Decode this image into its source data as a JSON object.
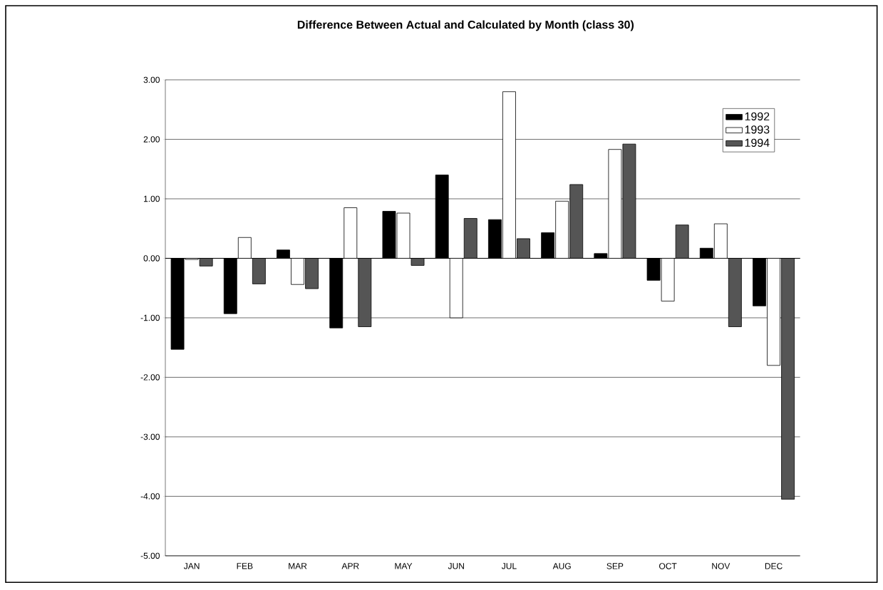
{
  "chart_data": {
    "type": "bar",
    "title": "Difference Between Actual and Calculated by Month (class 30)",
    "categories": [
      "JAN",
      "FEB",
      "MAR",
      "APR",
      "MAY",
      "JUN",
      "JUL",
      "AUG",
      "SEP",
      "OCT",
      "NOV",
      "DEC"
    ],
    "series": [
      {
        "name": "1992",
        "color": "#000000",
        "values": [
          -1.53,
          -0.93,
          0.14,
          -1.17,
          0.79,
          1.4,
          0.65,
          0.43,
          0.08,
          -0.37,
          0.17,
          -0.8
        ]
      },
      {
        "name": "1993",
        "color": "#ffffff",
        "values": [
          -0.02,
          0.35,
          -0.44,
          0.85,
          0.76,
          -1.0,
          2.8,
          0.96,
          1.83,
          -0.72,
          0.58,
          -1.8
        ]
      },
      {
        "name": "1994",
        "color": "#555555",
        "values": [
          -0.13,
          -0.43,
          -0.51,
          -1.15,
          -0.12,
          0.67,
          0.33,
          1.24,
          1.92,
          0.56,
          -1.15,
          -4.05
        ]
      }
    ],
    "ylim": [
      -5,
      3
    ],
    "yticks": [
      {
        "value": -5,
        "label": "-5.00"
      },
      {
        "value": -4,
        "label": "-4.00"
      },
      {
        "value": -3,
        "label": "-3.00"
      },
      {
        "value": -2,
        "label": "-2.00"
      },
      {
        "value": -1,
        "label": "-1.00"
      },
      {
        "value": 0,
        "label": "0.00"
      },
      {
        "value": 1,
        "label": "1.00"
      },
      {
        "value": 2,
        "label": "2.00"
      },
      {
        "value": 3,
        "label": "3.00"
      }
    ],
    "grid": "y",
    "legend": "top right"
  }
}
